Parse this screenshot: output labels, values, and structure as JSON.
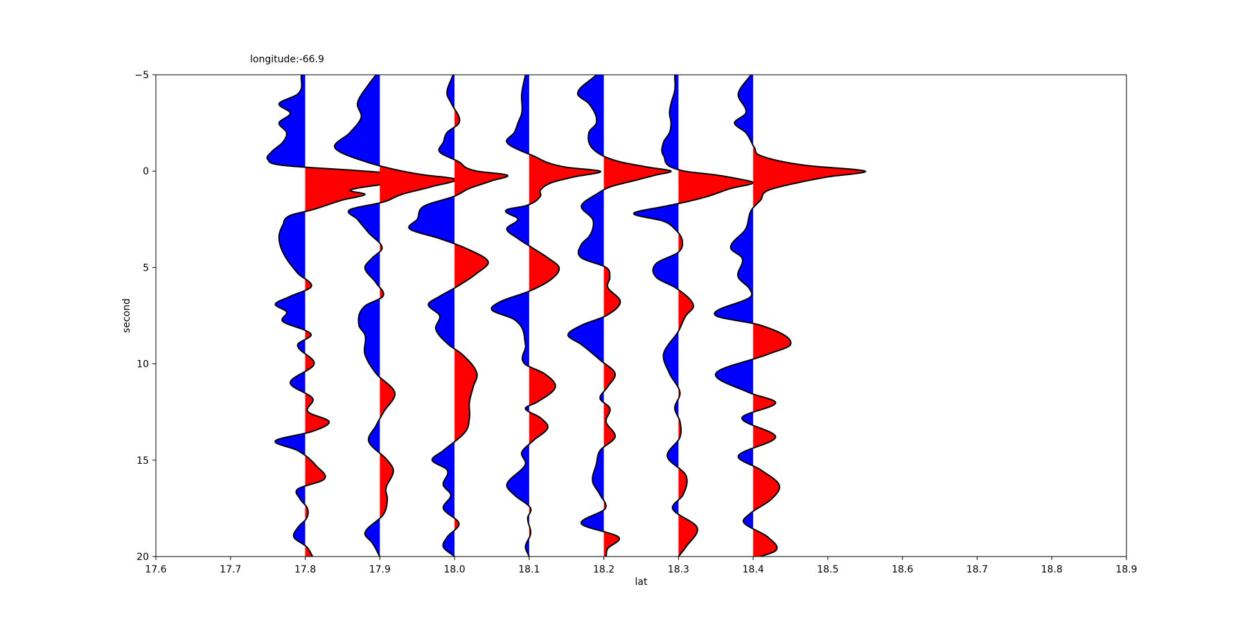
{
  "chart_data": {
    "type": "wiggle",
    "title": "longitude:-66.9",
    "xlabel": "lat",
    "ylabel": "second",
    "xlim": [
      17.6,
      18.9
    ],
    "ylim": [
      20,
      -5
    ],
    "y_inverted": true,
    "grid": false,
    "xticks": [
      "17.6",
      "17.7",
      "17.8",
      "17.9",
      "18.0",
      "18.1",
      "18.2",
      "18.3",
      "18.4",
      "18.5",
      "18.6",
      "18.7",
      "18.8",
      "18.9"
    ],
    "yticks": [
      "−5",
      "0",
      "5",
      "10",
      "15",
      "20"
    ],
    "colors": {
      "positive": "#ff0000",
      "negative": "#0000ff",
      "outline": "#000000"
    },
    "traces": [
      {
        "lat": 17.8,
        "points": [
          [
            -5,
            -0.005
          ],
          [
            -4,
            -0.01
          ],
          [
            -3.5,
            -0.035
          ],
          [
            -3,
            -0.02
          ],
          [
            -2.5,
            -0.035
          ],
          [
            -2,
            -0.025
          ],
          [
            -1.5,
            -0.03
          ],
          [
            -1,
            -0.045
          ],
          [
            -0.6,
            -0.05
          ],
          [
            -0.3,
            -0.03
          ],
          [
            0,
            0.08
          ],
          [
            0.3,
            0.17
          ],
          [
            0.6,
            0.12
          ],
          [
            1,
            0.06
          ],
          [
            1.2,
            0.08
          ],
          [
            1.5,
            0.05
          ],
          [
            2,
            0.01
          ],
          [
            2.3,
            -0.02
          ],
          [
            2.8,
            -0.03
          ],
          [
            3.4,
            -0.035
          ],
          [
            4.2,
            -0.03
          ],
          [
            5.3,
            -0.01
          ],
          [
            6,
            0.008
          ],
          [
            6.5,
            -0.02
          ],
          [
            6.9,
            -0.04
          ],
          [
            7.3,
            -0.025
          ],
          [
            7.8,
            -0.03
          ],
          [
            8.3,
            0.002
          ],
          [
            8.5,
            0.008
          ],
          [
            9,
            -0.01
          ],
          [
            10,
            0.012
          ],
          [
            11,
            -0.02
          ],
          [
            11.8,
            0.01
          ],
          [
            12.5,
            0.004
          ],
          [
            13,
            0.032
          ],
          [
            13.5,
            0.01
          ],
          [
            14,
            -0.04
          ],
          [
            14.5,
            -0.01
          ],
          [
            15.3,
            0.015
          ],
          [
            16,
            0.025
          ],
          [
            16.5,
            -0.01
          ],
          [
            17,
            -0.007
          ],
          [
            17.5,
            0.003
          ],
          [
            18,
            0.002
          ],
          [
            18.5,
            -0.01
          ],
          [
            19,
            -0.015
          ],
          [
            19.5,
            0.002
          ],
          [
            20,
            0.01
          ]
        ]
      },
      {
        "lat": 17.9,
        "points": [
          [
            -5,
            -0.005
          ],
          [
            -4.5,
            -0.015
          ],
          [
            -3.5,
            -0.03
          ],
          [
            -2.8,
            -0.025
          ],
          [
            -2,
            -0.04
          ],
          [
            -1.2,
            -0.06
          ],
          [
            -0.5,
            -0.02
          ],
          [
            0,
            0.03
          ],
          [
            0.2,
            0.06
          ],
          [
            0.4,
            0.1
          ],
          [
            0.8,
            0.07
          ],
          [
            1.2,
            0.03
          ],
          [
            1.6,
            0.005
          ],
          [
            2,
            -0.04
          ],
          [
            2.5,
            -0.03
          ],
          [
            3.2,
            -0.015
          ],
          [
            4,
            0.003
          ],
          [
            4.5,
            -0.01
          ],
          [
            5,
            -0.02
          ],
          [
            5.8,
            -0.005
          ],
          [
            6.5,
            0.004
          ],
          [
            7,
            -0.02
          ],
          [
            8,
            -0.028
          ],
          [
            8.5,
            -0.02
          ],
          [
            9.5,
            -0.02
          ],
          [
            10.5,
            -0.005
          ],
          [
            11.5,
            0.02
          ],
          [
            12.5,
            0.005
          ],
          [
            13.2,
            -0.005
          ],
          [
            14,
            -0.015
          ],
          [
            15,
            0.01
          ],
          [
            15.5,
            0.018
          ],
          [
            16.5,
            0.008
          ],
          [
            17,
            0.01
          ],
          [
            17.8,
            0.005
          ],
          [
            18.8,
            -0.02
          ],
          [
            19.3,
            -0.01
          ],
          [
            20,
            0
          ]
        ]
      },
      {
        "lat": 18.0,
        "points": [
          [
            -5,
            -0.002
          ],
          [
            -4,
            -0.01
          ],
          [
            -3.5,
            -0.004
          ],
          [
            -2.5,
            0.006
          ],
          [
            -2,
            -0.01
          ],
          [
            -1.5,
            -0.015
          ],
          [
            -1,
            -0.02
          ],
          [
            -0.5,
            0.005
          ],
          [
            0,
            0.03
          ],
          [
            0.2,
            0.07
          ],
          [
            0.5,
            0.05
          ],
          [
            0.9,
            0.02
          ],
          [
            1.3,
            0
          ],
          [
            1.8,
            -0.04
          ],
          [
            2.5,
            -0.05
          ],
          [
            3,
            -0.06
          ],
          [
            3.5,
            -0.02
          ],
          [
            4,
            0.015
          ],
          [
            4.7,
            0.045
          ],
          [
            5.3,
            0.03
          ],
          [
            6,
            0.003
          ],
          [
            6.5,
            -0.02
          ],
          [
            6.9,
            -0.035
          ],
          [
            7.5,
            -0.02
          ],
          [
            8.2,
            -0.025
          ],
          [
            9,
            -0.008
          ],
          [
            9.5,
            0.01
          ],
          [
            10.5,
            0.03
          ],
          [
            11.2,
            0.025
          ],
          [
            12,
            0.02
          ],
          [
            12.8,
            0.02
          ],
          [
            13.5,
            0.015
          ],
          [
            14.5,
            -0.015
          ],
          [
            15,
            -0.03
          ],
          [
            15.5,
            -0.01
          ],
          [
            16.3,
            -0.015
          ],
          [
            16.8,
            -0.005
          ],
          [
            17.5,
            -0.015
          ],
          [
            18.3,
            0.006
          ],
          [
            19,
            -0.01
          ],
          [
            19.5,
            -0.015
          ],
          [
            20,
            0
          ]
        ]
      },
      {
        "lat": 18.1,
        "points": [
          [
            -5,
            -0.005
          ],
          [
            -4,
            -0.01
          ],
          [
            -3,
            -0.01
          ],
          [
            -2.5,
            -0.015
          ],
          [
            -2,
            -0.02
          ],
          [
            -1.5,
            -0.03
          ],
          [
            -0.8,
            0.005
          ],
          [
            -0.2,
            0.05
          ],
          [
            0,
            0.095
          ],
          [
            0.3,
            0.06
          ],
          [
            0.6,
            0.03
          ],
          [
            1,
            0.015
          ],
          [
            1.3,
            0.015
          ],
          [
            1.8,
            -0.005
          ],
          [
            2,
            -0.03
          ],
          [
            2.5,
            -0.015
          ],
          [
            3,
            -0.03
          ],
          [
            3.5,
            -0.015
          ],
          [
            4,
            0.005
          ],
          [
            4.5,
            0.025
          ],
          [
            5,
            0.04
          ],
          [
            5.6,
            0.03
          ],
          [
            6.2,
            0.002
          ],
          [
            6.8,
            -0.04
          ],
          [
            7.2,
            -0.05
          ],
          [
            7.7,
            -0.02
          ],
          [
            9,
            -0.005
          ],
          [
            10,
            -0.006
          ],
          [
            10.5,
            0.02
          ],
          [
            11.2,
            0.035
          ],
          [
            12,
            0.01
          ],
          [
            12.3,
            -0.005
          ],
          [
            12.8,
            0.015
          ],
          [
            13.3,
            0.025
          ],
          [
            14,
            0.005
          ],
          [
            14.6,
            -0.01
          ],
          [
            15.2,
            -0.005
          ],
          [
            16.3,
            -0.03
          ],
          [
            16.8,
            -0.02
          ],
          [
            17.5,
            0.002
          ],
          [
            18,
            -0.002
          ],
          [
            18.8,
            0.002
          ],
          [
            19.5,
            -0.005
          ],
          [
            20,
            0
          ]
        ]
      },
      {
        "lat": 18.2,
        "points": [
          [
            -5,
            -0.01
          ],
          [
            -4,
            -0.035
          ],
          [
            -3.5,
            -0.02
          ],
          [
            -2.5,
            -0.01
          ],
          [
            -2,
            -0.02
          ],
          [
            -1,
            -0.01
          ],
          [
            -0.5,
            0.02
          ],
          [
            -0.2,
            0.06
          ],
          [
            0,
            0.09
          ],
          [
            0.2,
            0.07
          ],
          [
            0.5,
            0.04
          ],
          [
            0.8,
            0.01
          ],
          [
            1.2,
            -0.01
          ],
          [
            1.8,
            -0.03
          ],
          [
            2.5,
            -0.015
          ],
          [
            3,
            -0.015
          ],
          [
            3.4,
            -0.02
          ],
          [
            3.8,
            -0.03
          ],
          [
            4.5,
            -0.03
          ],
          [
            5,
            0.003
          ],
          [
            5.5,
            0.008
          ],
          [
            6,
            0.005
          ],
          [
            6.8,
            0.022
          ],
          [
            7.5,
            0.003
          ],
          [
            8,
            -0.03
          ],
          [
            8.5,
            -0.048
          ],
          [
            9,
            -0.03
          ],
          [
            9.8,
            -0.005
          ],
          [
            10.5,
            0.015
          ],
          [
            11.2,
            0.005
          ],
          [
            11.8,
            -0.005
          ],
          [
            12.3,
            0.008
          ],
          [
            13,
            0.003
          ],
          [
            13.8,
            0.015
          ],
          [
            14.5,
            -0.005
          ],
          [
            15.2,
            -0.01
          ],
          [
            16.1,
            -0.015
          ],
          [
            16.8,
            -0.005
          ],
          [
            17.5,
            0.002
          ],
          [
            18.3,
            -0.03
          ],
          [
            19,
            0.02
          ],
          [
            19.6,
            0.005
          ],
          [
            20,
            0.003
          ]
        ]
      },
      {
        "lat": 18.3,
        "points": [
          [
            -5,
            -0.005
          ],
          [
            -4.2,
            -0.005
          ],
          [
            -3.5,
            -0.01
          ],
          [
            -3,
            -0.012
          ],
          [
            -2.5,
            -0.01
          ],
          [
            -2,
            -0.012
          ],
          [
            -1.5,
            -0.02
          ],
          [
            -0.8,
            -0.02
          ],
          [
            0,
            0.008
          ],
          [
            0.2,
            0.05
          ],
          [
            0.4,
            0.08
          ],
          [
            0.6,
            0.1
          ],
          [
            0.9,
            0.07
          ],
          [
            1.3,
            0.04
          ],
          [
            1.6,
            0.01
          ],
          [
            1.8,
            -0.015
          ],
          [
            2.2,
            -0.06
          ],
          [
            2.6,
            -0.02
          ],
          [
            3,
            -0.005
          ],
          [
            3.6,
            0.005
          ],
          [
            4.2,
            0
          ],
          [
            4.8,
            -0.03
          ],
          [
            5.5,
            -0.03
          ],
          [
            6.1,
            -0.002
          ],
          [
            7,
            0.02
          ],
          [
            7.5,
            0.01
          ],
          [
            8.3,
            0
          ],
          [
            9.5,
            -0.02
          ],
          [
            10.5,
            -0.012
          ],
          [
            11.5,
            0.002
          ],
          [
            12.3,
            -0.005
          ],
          [
            13,
            0.002
          ],
          [
            13.8,
            0.002
          ],
          [
            14.8,
            -0.015
          ],
          [
            15.8,
            0.01
          ],
          [
            16.8,
            0.006
          ],
          [
            17.5,
            -0.008
          ],
          [
            18.5,
            0.025
          ],
          [
            19.5,
            0.01
          ],
          [
            20,
            0
          ]
        ]
      },
      {
        "lat": 18.4,
        "points": [
          [
            -5,
            -0.003
          ],
          [
            -4,
            -0.02
          ],
          [
            -3,
            -0.01
          ],
          [
            -2.5,
            -0.025
          ],
          [
            -2,
            -0.01
          ],
          [
            -1.2,
            0.002
          ],
          [
            -0.8,
            0.01
          ],
          [
            -0.3,
            0.07
          ],
          [
            0,
            0.15
          ],
          [
            0.3,
            0.1
          ],
          [
            0.6,
            0.06
          ],
          [
            1,
            0.02
          ],
          [
            1.5,
            0.01
          ],
          [
            2,
            -0.002
          ],
          [
            3,
            -0.01
          ],
          [
            4,
            -0.03
          ],
          [
            4.5,
            -0.015
          ],
          [
            5.5,
            -0.02
          ],
          [
            6.1,
            -0.005
          ],
          [
            6.5,
            -0.003
          ],
          [
            7.5,
            -0.05
          ],
          [
            8,
            0.01
          ],
          [
            9,
            0.05
          ],
          [
            9.5,
            0.02
          ],
          [
            10.5,
            -0.05
          ],
          [
            11.5,
            -0.005
          ],
          [
            12,
            0.03
          ],
          [
            12.8,
            -0.015
          ],
          [
            13.8,
            0.03
          ],
          [
            14.8,
            -0.02
          ],
          [
            15.5,
            0.01
          ],
          [
            16.3,
            0.035
          ],
          [
            17,
            0.025
          ],
          [
            17.8,
            -0.005
          ],
          [
            18.2,
            -0.013
          ],
          [
            19,
            0.02
          ],
          [
            19.7,
            0.03
          ],
          [
            20,
            0.01
          ]
        ]
      }
    ]
  }
}
